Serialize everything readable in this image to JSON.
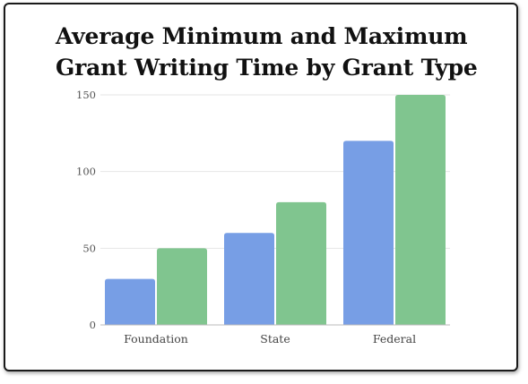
{
  "colors": {
    "series_1": "#779ee5",
    "series_2": "#80c58f",
    "grid": "#e6e6e6",
    "baseline": "#bbbbbb"
  },
  "chart_data": {
    "type": "bar",
    "title": "Average Minimum and Maximum Grant Writing Time by Grant Type",
    "categories": [
      "Foundation",
      "State",
      "Federal"
    ],
    "series": [
      {
        "values": [
          30,
          60,
          120
        ],
        "color": "#779ee5"
      },
      {
        "values": [
          50,
          80,
          150
        ],
        "color": "#80c58f"
      }
    ],
    "xlabel": "",
    "ylabel": "",
    "ylim": [
      0,
      150
    ],
    "yticks": [
      0,
      50,
      100,
      150
    ],
    "grid": true,
    "legend": "none"
  }
}
